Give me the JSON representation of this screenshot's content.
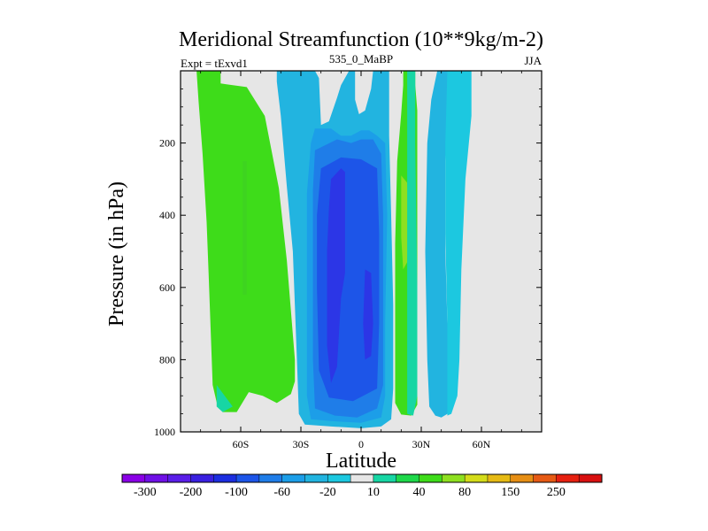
{
  "chart_data": {
    "type": "heatmap",
    "title": "Meridional Streamfunction (10**9kg/m-2)",
    "subtitle_left": "Expt = tExvd1",
    "subtitle_center": "535_0_MaBP",
    "subtitle_right": "JJA",
    "xlabel": "Latitude",
    "ylabel": "Pressure (in hPa)",
    "xlim": [
      -90,
      90
    ],
    "ylim": [
      1000,
      0
    ],
    "x_ticks": [
      {
        "value": -60,
        "label": "60S"
      },
      {
        "value": -30,
        "label": "30S"
      },
      {
        "value": 0,
        "label": "0"
      },
      {
        "value": 30,
        "label": "30N"
      },
      {
        "value": 60,
        "label": "60N"
      }
    ],
    "y_ticks": [
      {
        "value": 200,
        "label": "200"
      },
      {
        "value": 400,
        "label": "400"
      },
      {
        "value": 600,
        "label": "600"
      },
      {
        "value": 800,
        "label": "800"
      },
      {
        "value": 1000,
        "label": "1000"
      }
    ],
    "colorbar": {
      "levels": [
        -300,
        -250,
        -200,
        -150,
        -100,
        -80,
        -60,
        -40,
        -20,
        -10,
        10,
        20,
        40,
        60,
        80,
        100,
        150,
        200,
        250,
        300
      ],
      "labels": [
        "-300",
        "-200",
        "-100",
        "-60",
        "-20",
        "10",
        "40",
        "80",
        "150",
        "250"
      ],
      "colors": [
        "#8a00e6",
        "#6f10e6",
        "#5a1ee8",
        "#3a20e0",
        "#1c2ee0",
        "#1d55e8",
        "#1f7de8",
        "#1c9ee8",
        "#22b4e0",
        "#1cc8e0",
        "#e6e6e6",
        "#17d6a4",
        "#1ed84a",
        "#3edc1a",
        "#8ee020",
        "#d4dc1a",
        "#e6ba14",
        "#e68e14",
        "#e65a14",
        "#e62010",
        "#d81010"
      ]
    },
    "regions": [
      {
        "name": "sh-ferrel-cell",
        "level": "20 to 40",
        "color": "#3edc1a",
        "polygon": [
          [
            -82,
            0
          ],
          [
            -70,
            0
          ],
          [
            -70,
            35
          ],
          [
            -57,
            45
          ],
          [
            -48,
            125
          ],
          [
            -41,
            325
          ],
          [
            -37,
            525
          ],
          [
            -33,
            800
          ],
          [
            -33,
            860
          ],
          [
            -35,
            895
          ],
          [
            -42,
            920
          ],
          [
            -49,
            900
          ],
          [
            -56,
            890
          ],
          [
            -62,
            945
          ],
          [
            -69,
            945
          ],
          [
            -72,
            918
          ],
          [
            -74,
            870
          ],
          [
            -75,
            715
          ],
          [
            -76,
            560
          ],
          [
            -77,
            420
          ],
          [
            -79,
            230
          ],
          [
            -81,
            85
          ]
        ]
      },
      {
        "name": "sh-ferrel-core",
        "level": "40 to 60",
        "color": "#3ed420",
        "polygon": [
          [
            -59,
            250
          ],
          [
            -57,
            250
          ],
          [
            -57,
            620
          ],
          [
            -59,
            620
          ]
        ]
      },
      {
        "name": "hadley-outer",
        "level": "-20 to -10",
        "color": "#22b4e0",
        "polygon": [
          [
            -42,
            0
          ],
          [
            -23,
            0
          ],
          [
            -21,
            20
          ],
          [
            -20,
            150
          ],
          [
            -16,
            140
          ],
          [
            -12,
            75
          ],
          [
            -10,
            40
          ],
          [
            -6,
            0
          ],
          [
            -3,
            0
          ],
          [
            -3,
            80
          ],
          [
            -1,
            120
          ],
          [
            2,
            110
          ],
          [
            5,
            50
          ],
          [
            6,
            0
          ],
          [
            14,
            0
          ],
          [
            14,
            180
          ],
          [
            15,
            400
          ],
          [
            16,
            650
          ],
          [
            16,
            880
          ],
          [
            15,
            965
          ],
          [
            10,
            985
          ],
          [
            0,
            990
          ],
          [
            -15,
            985
          ],
          [
            -28,
            980
          ],
          [
            -31,
            950
          ],
          [
            -32,
            800
          ],
          [
            -34,
            500
          ],
          [
            -37,
            320
          ],
          [
            -40,
            125
          ],
          [
            -42,
            30
          ]
        ]
      },
      {
        "name": "hadley-mid",
        "level": "-40 to -20",
        "color": "#1c9ee8",
        "polygon": [
          [
            -23,
            160
          ],
          [
            -15,
            160
          ],
          [
            -10,
            180
          ],
          [
            -5,
            180
          ],
          [
            0,
            165
          ],
          [
            4,
            165
          ],
          [
            8,
            180
          ],
          [
            12,
            200
          ],
          [
            13,
            400
          ],
          [
            12,
            700
          ],
          [
            12,
            900
          ],
          [
            10,
            960
          ],
          [
            0,
            975
          ],
          [
            -15,
            970
          ],
          [
            -25,
            965
          ],
          [
            -27,
            900
          ],
          [
            -27,
            600
          ],
          [
            -27,
            340
          ],
          [
            -25,
            200
          ]
        ]
      },
      {
        "name": "hadley-inner",
        "level": "-60 to -40",
        "color": "#1f7de8",
        "polygon": [
          [
            -23,
            220
          ],
          [
            -12,
            190
          ],
          [
            -5,
            200
          ],
          [
            0,
            190
          ],
          [
            6,
            190
          ],
          [
            10,
            230
          ],
          [
            11,
            400
          ],
          [
            11,
            700
          ],
          [
            11,
            870
          ],
          [
            8,
            935
          ],
          [
            -2,
            960
          ],
          [
            -13,
            955
          ],
          [
            -23,
            935
          ],
          [
            -24,
            800
          ],
          [
            -24,
            520
          ],
          [
            -24,
            330
          ]
        ]
      },
      {
        "name": "hadley-core",
        "level": "-80 to -60",
        "color": "#1d55e8",
        "polygon": [
          [
            -20,
            270
          ],
          [
            -10,
            240
          ],
          [
            0,
            245
          ],
          [
            8,
            270
          ],
          [
            9,
            450
          ],
          [
            9,
            700
          ],
          [
            8,
            880
          ],
          [
            -4,
            915
          ],
          [
            -16,
            905
          ],
          [
            -21,
            830
          ],
          [
            -22,
            600
          ],
          [
            -22,
            400
          ]
        ]
      },
      {
        "name": "hadley-max",
        "level": "-100 to -80",
        "color": "#2c36e6",
        "polygon": [
          [
            -15,
            300
          ],
          [
            -10,
            270
          ],
          [
            -8,
            280
          ],
          [
            -8,
            560
          ],
          [
            -10,
            630
          ],
          [
            -12,
            820
          ],
          [
            -15,
            865
          ],
          [
            -17,
            760
          ],
          [
            -17,
            500
          ],
          [
            -16,
            380
          ]
        ]
      },
      {
        "name": "hadley-max-lower",
        "level": "-100 to -80",
        "color": "#2c36e6",
        "polygon": [
          [
            2,
            550
          ],
          [
            5,
            560
          ],
          [
            6,
            700
          ],
          [
            5,
            790
          ],
          [
            2,
            800
          ],
          [
            1,
            700
          ]
        ]
      },
      {
        "name": "nh-ferrel-cell",
        "level": "20 to 40",
        "color": "#3edc1a",
        "polygon": [
          [
            21,
            0
          ],
          [
            27,
            0
          ],
          [
            27,
            40
          ],
          [
            28,
            110
          ],
          [
            28,
            320
          ],
          [
            28,
            600
          ],
          [
            28,
            860
          ],
          [
            28,
            925
          ],
          [
            25,
            955
          ],
          [
            20,
            952
          ],
          [
            17,
            920
          ],
          [
            17,
            720
          ],
          [
            17,
            480
          ],
          [
            18,
            250
          ],
          [
            20,
            120
          ],
          [
            21,
            40
          ]
        ]
      },
      {
        "name": "nh-ferrel-core",
        "level": "40 to 60",
        "color": "#8ee020",
        "polygon": [
          [
            20,
            290
          ],
          [
            23,
            310
          ],
          [
            24,
            400
          ],
          [
            23,
            530
          ],
          [
            21,
            550
          ],
          [
            20,
            460
          ]
        ]
      },
      {
        "name": "nh-polar-band-a",
        "level": "10 to 20",
        "color": "#17d6a4",
        "polygon": [
          [
            23,
            0
          ],
          [
            27,
            0
          ],
          [
            27,
            200
          ],
          [
            28,
            600
          ],
          [
            28,
            900
          ],
          [
            26,
            955
          ],
          [
            23,
            950
          ]
        ]
      },
      {
        "name": "nh-polar-band-b",
        "level": "-20 to -10",
        "color": "#22b4e0",
        "polygon": [
          [
            38,
            0
          ],
          [
            43,
            0
          ],
          [
            43,
            120
          ],
          [
            42,
            250
          ],
          [
            42,
            500
          ],
          [
            43,
            700
          ],
          [
            44,
            900
          ],
          [
            43,
            950
          ],
          [
            40,
            960
          ],
          [
            37,
            955
          ],
          [
            34,
            930
          ],
          [
            33,
            800
          ],
          [
            32,
            500
          ],
          [
            33,
            200
          ],
          [
            35,
            80
          ]
        ]
      },
      {
        "name": "nh-polar-band-c",
        "level": "-20 to -10",
        "color": "#1cc8e0",
        "polygon": [
          [
            43,
            0
          ],
          [
            55,
            0
          ],
          [
            55,
            125
          ],
          [
            52,
            300
          ],
          [
            50,
            550
          ],
          [
            49,
            800
          ],
          [
            48,
            900
          ],
          [
            45,
            950
          ],
          [
            43,
            955
          ],
          [
            43,
            700
          ],
          [
            42,
            450
          ],
          [
            42,
            200
          ]
        ]
      },
      {
        "name": "sh-polar-band",
        "level": "10 to 20",
        "color": "#17d6a4",
        "polygon": [
          [
            -72,
            870
          ],
          [
            -68,
            900
          ],
          [
            -64,
            930
          ],
          [
            -69,
            945
          ],
          [
            -72,
            930
          ]
        ]
      }
    ]
  }
}
